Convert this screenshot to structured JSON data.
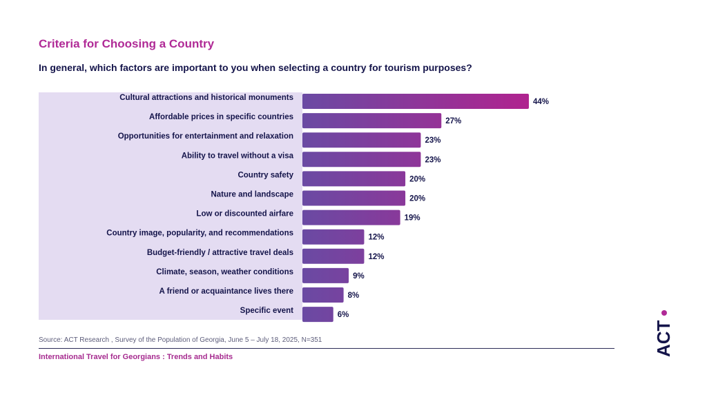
{
  "header": {
    "title": "Criteria for Choosing a Country",
    "subtitle": "In general, which factors are important to you when selecting a country for tourism purposes?"
  },
  "chart_data": {
    "type": "bar",
    "orientation": "horizontal",
    "categories": [
      "Cultural attractions and historical monuments",
      "Affordable prices in specific countries",
      "Opportunities for entertainment and relaxation",
      "Ability to travel without a visa",
      "Country safety",
      "Nature and landscape",
      "Low or discounted airfare",
      "Country image, popularity, and recommendations",
      "Budget-friendly / attractive travel deals",
      "Climate, season, weather conditions",
      "A friend or acquaintance lives there",
      "Specific event"
    ],
    "values": [
      44,
      27,
      23,
      23,
      20,
      20,
      19,
      12,
      12,
      9,
      8,
      6
    ],
    "value_labels": [
      "44%",
      "27%",
      "23%",
      "23%",
      "20%",
      "20%",
      "19%",
      "12%",
      "12%",
      "9%",
      "8%",
      "6%"
    ],
    "unit": "%",
    "title": "Criteria for Choosing a Country",
    "xlabel": "",
    "ylabel": "",
    "xlim": [
      0,
      44
    ],
    "grid": false,
    "legend": "none"
  },
  "colors": {
    "bar_start": "#6a4aa3",
    "bar_end": "#b0238f",
    "label_panel": "#e4dcf2",
    "title": "#b02a96",
    "footer_accent": "#a62b8f",
    "text_dark": "#14144a"
  },
  "footer": {
    "source": "Source: ACT Research , Survey of the Population of Georgia, June 5 – July 18, 2025, N=351",
    "report_title": "International Travel for Georgians : Trends and Habits"
  },
  "logo": {
    "text": "ACT",
    "icon": "act-research-logo"
  }
}
